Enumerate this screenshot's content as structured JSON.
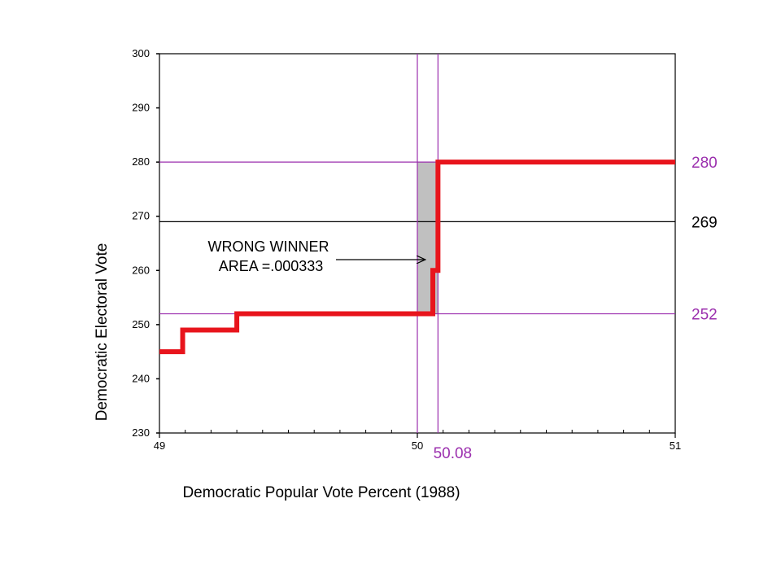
{
  "chart_data": {
    "type": "line",
    "title": "",
    "xlabel": "Democratic Popular Vote Percent (1988)",
    "ylabel": "Democratic Electoral Vote",
    "xlim": [
      49,
      51
    ],
    "ylim": [
      230,
      300
    ],
    "x_ticks": [
      49,
      50,
      51
    ],
    "x_tick_labels": [
      "49",
      "50",
      "51"
    ],
    "y_ticks": [
      230,
      240,
      250,
      260,
      270,
      280,
      290,
      300
    ],
    "y_tick_labels": [
      "230",
      "240",
      "250",
      "260",
      "270",
      "280",
      "290",
      "300"
    ],
    "x_minor_step": 0.1,
    "grid": false,
    "series": [
      {
        "shape": "step",
        "color": "#e8141c",
        "points": [
          [
            49.0,
            245
          ],
          [
            49.09,
            245
          ],
          [
            49.09,
            249
          ],
          [
            49.3,
            249
          ],
          [
            49.3,
            252
          ],
          [
            50.06,
            252
          ],
          [
            50.06,
            260
          ],
          [
            50.08,
            260
          ],
          [
            50.08,
            280
          ],
          [
            51.0,
            280
          ]
        ]
      }
    ],
    "reference_lines": [
      {
        "axis": "y",
        "value": 280,
        "label": "280",
        "color": "#9b2fae"
      },
      {
        "axis": "y",
        "value": 269,
        "label": "269",
        "color": "#000000"
      },
      {
        "axis": "y",
        "value": 252,
        "label": "252",
        "color": "#9b2fae"
      },
      {
        "axis": "x",
        "value": 50.0,
        "label": "",
        "color": "#9b2fae"
      },
      {
        "axis": "x",
        "value": 50.08,
        "label": "50.08",
        "color": "#9b2fae"
      }
    ],
    "shaded_region": {
      "color": "#c0c0c0",
      "x_range": [
        50.0,
        50.08
      ],
      "y_range": [
        252,
        280
      ]
    },
    "annotation": {
      "lines": [
        "WRONG WINNER",
        "AREA =.000333"
      ],
      "arrow_to": [
        50.05,
        262
      ]
    }
  }
}
